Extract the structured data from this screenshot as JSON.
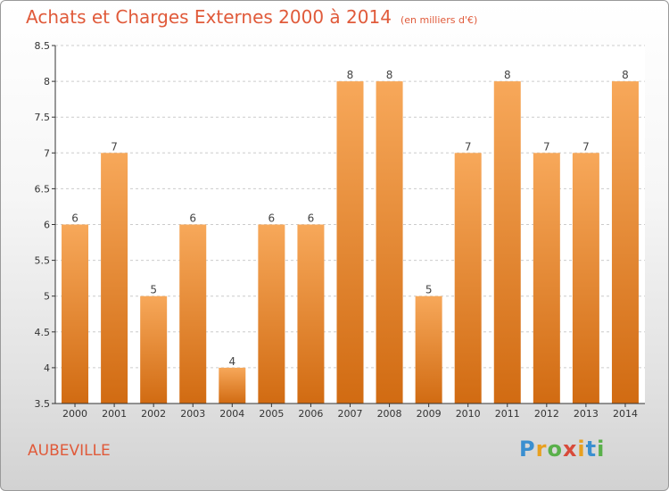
{
  "header": {
    "title": "Achats et Charges Externes 2000 à 2014",
    "unit": "(en milliers d'€)"
  },
  "footer": {
    "city": "AUBEVILLE",
    "brand": "Proxiti"
  },
  "colors": {
    "bar_top": "#f7a85a",
    "bar_bottom": "#d16b12",
    "accent": "#e05a3a"
  },
  "chart_data": {
    "type": "bar",
    "title": "Achats et Charges Externes 2000 à 2014",
    "subtitle": "(en milliers d'€)",
    "xlabel": "",
    "ylabel": "",
    "categories": [
      "2000",
      "2001",
      "2002",
      "2003",
      "2004",
      "2005",
      "2006",
      "2007",
      "2008",
      "2009",
      "2010",
      "2011",
      "2012",
      "2013",
      "2014"
    ],
    "values": [
      6,
      7,
      5,
      6,
      4,
      6,
      6,
      8,
      8,
      5,
      7,
      8,
      7,
      7,
      8
    ],
    "ylim": [
      3.5,
      8.5
    ],
    "yticks": [
      "3.5",
      "4",
      "4.5",
      "5",
      "5.5",
      "6",
      "6.5",
      "7",
      "7.5",
      "8",
      "8.5"
    ],
    "grid": true,
    "legend": "none"
  }
}
